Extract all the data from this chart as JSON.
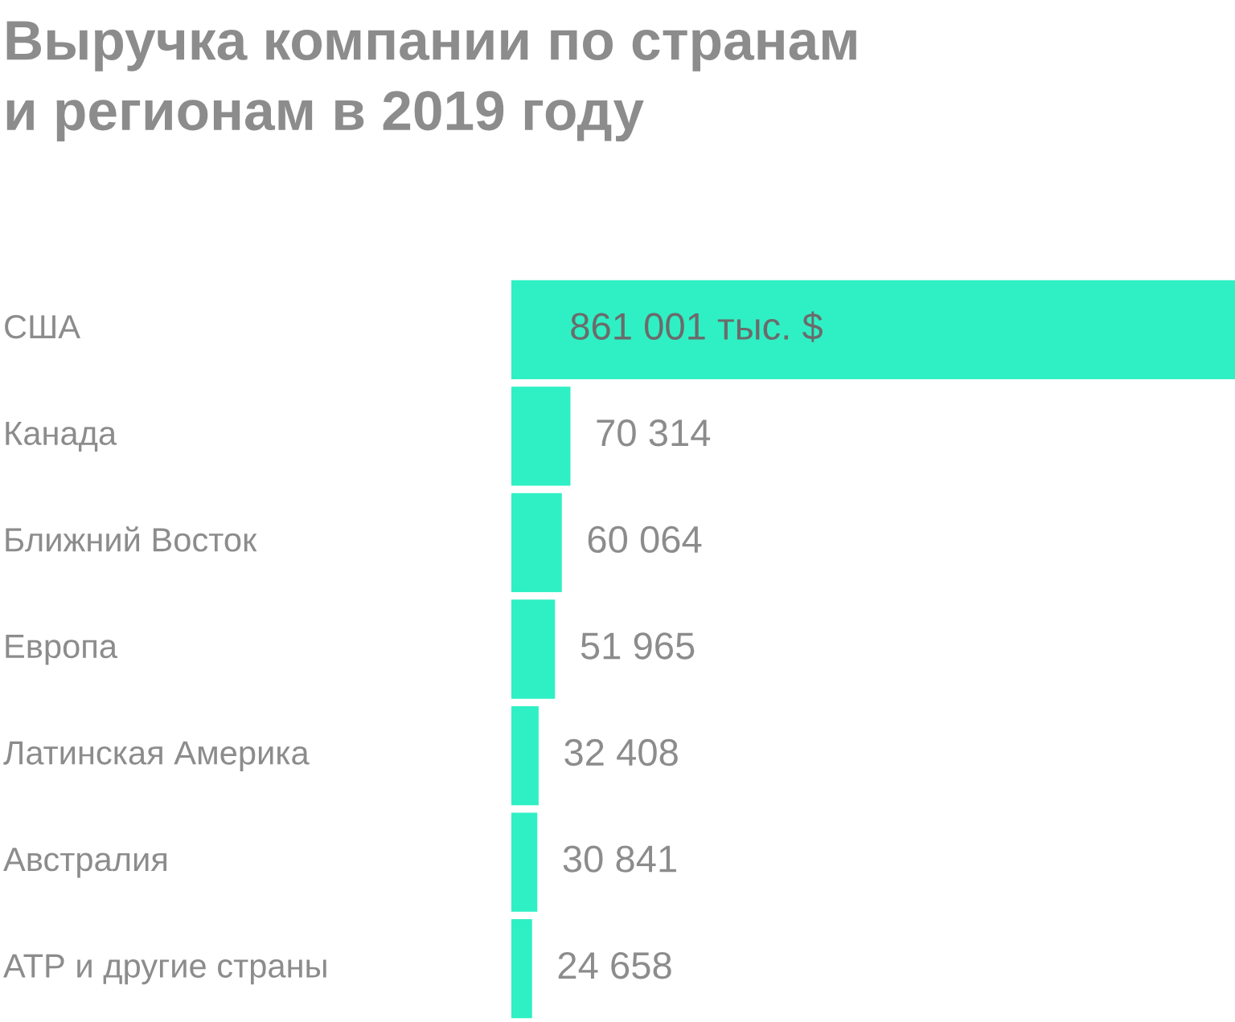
{
  "chart_data": {
    "type": "bar",
    "orientation": "horizontal",
    "title": "Выручка компании по странам\nи регионам в 2019 году",
    "categories": [
      "США",
      "Канада",
      "Ближний Восток",
      "Европа",
      "Латинская Америка",
      "Австралия",
      "АТР и другие страны"
    ],
    "values": [
      861001,
      70314,
      60064,
      51965,
      32408,
      30841,
      24658
    ],
    "value_labels": [
      "861 001 тыс. $",
      "70 314",
      "60 064",
      "51 965",
      "32 408",
      "30 841",
      "24 658"
    ],
    "color": "#2ff0c4"
  }
}
